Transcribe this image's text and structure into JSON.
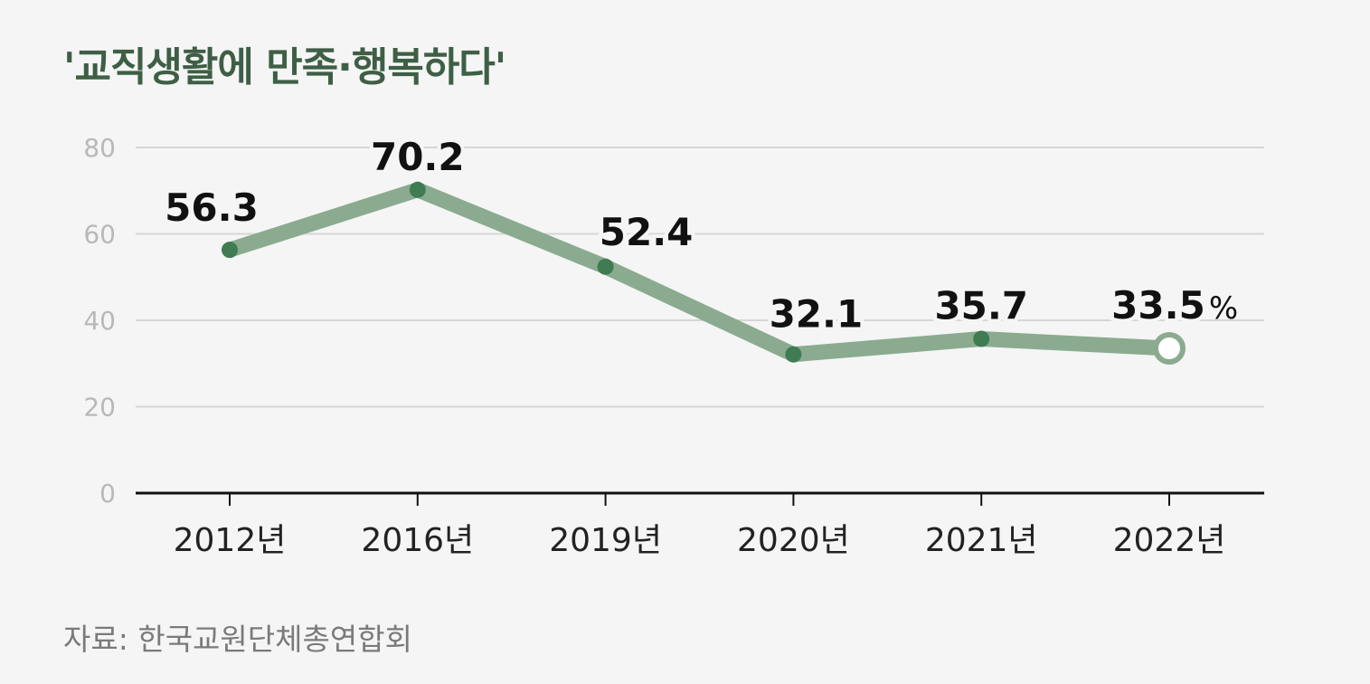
{
  "title": "'교직생활에 만족·행복하다'",
  "source": "자료: 한국교원단체총연합회",
  "colors": {
    "line": "#8aab8f",
    "marker": "#3f7c52",
    "title": "#3e5f45",
    "background": "#f5f5f5"
  },
  "chart_data": {
    "type": "line",
    "categories": [
      "2012년",
      "2016년",
      "2019년",
      "2020년",
      "2021년",
      "2022년"
    ],
    "series": [
      {
        "values": [
          56.3,
          70.2,
          52.4,
          32.1,
          35.7,
          33.5
        ],
        "labels": [
          "56.3",
          "70.2",
          "52.4",
          "32.1",
          "35.7",
          "33.5"
        ]
      }
    ],
    "unit": "%",
    "ylim": [
      0,
      80
    ],
    "yticks": [
      0,
      20,
      40,
      60,
      80
    ],
    "ytick_labels": [
      "0",
      "20",
      "40",
      "60",
      "80"
    ],
    "grid": true,
    "xlabel": "",
    "ylabel": "",
    "highlight_last_point": true
  }
}
